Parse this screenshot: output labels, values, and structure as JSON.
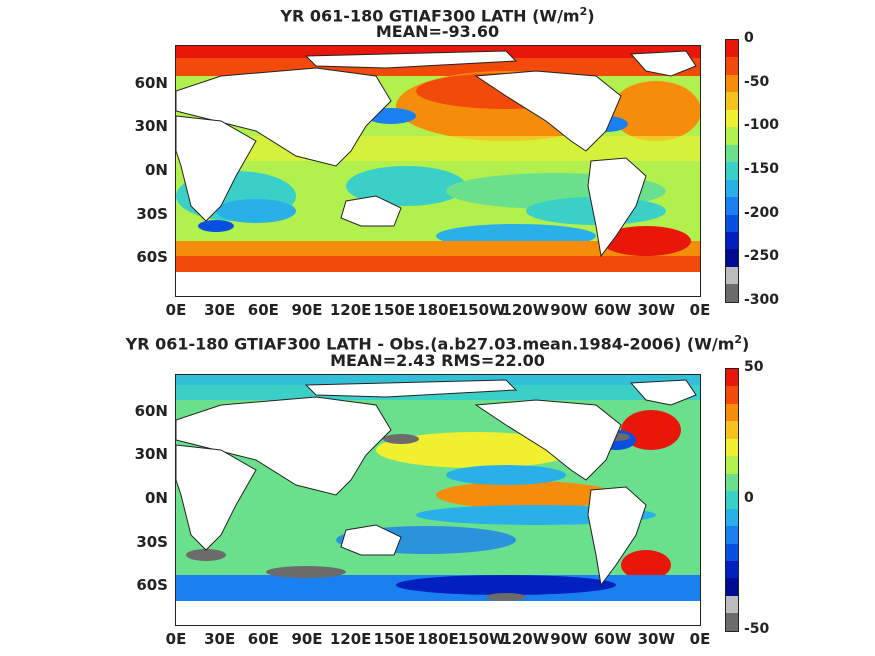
{
  "maps": [
    {
      "title_line1": "YR 061-180 GTIAF300  LATH (W/m",
      "title_sup": "2",
      "title_close": ")",
      "title_line2": "MEAN=-93.60",
      "colorbar_labels": [
        "0",
        "-50",
        "-100",
        "-150",
        "-200",
        "-250",
        "-300"
      ],
      "colorbar_colors": [
        "#e8170a",
        "#f24a0a",
        "#f58c0a",
        "#f8c21c",
        "#f0f030",
        "#b2f04e",
        "#6ae08c",
        "#3ad0c8",
        "#2ab0e8",
        "#1a80f0",
        "#0a50e0",
        "#0020c0",
        "#000c90",
        "#bdbdbd",
        "#6b6b6b"
      ]
    },
    {
      "title_line1": "YR 061-180 GTIAF300 LATH - Obs.(a.b27.03.mean.1984-2006) (W/m",
      "title_sup": "2",
      "title_close": ")",
      "title_line2": "MEAN=2.43 RMS=22.00",
      "colorbar_labels": [
        "50",
        "0",
        "-50"
      ],
      "colorbar_colors": [
        "#e8170a",
        "#f24a0a",
        "#f58c0a",
        "#f8c21c",
        "#f0f030",
        "#b2f04e",
        "#6ae08c",
        "#3ad0c8",
        "#2ab0e8",
        "#1a80f0",
        "#0a50e0",
        "#0020c0",
        "#000c90",
        "#bdbdbd",
        "#6b6b6b"
      ]
    }
  ],
  "lat_labels": [
    "60N",
    "30N",
    "0N",
    "30S",
    "60S"
  ],
  "lon_labels": [
    "0E",
    "30E",
    "60E",
    "90E",
    "120E",
    "150E",
    "180E",
    "150W",
    "120W",
    "90W",
    "60W",
    "30W",
    "0E"
  ]
}
